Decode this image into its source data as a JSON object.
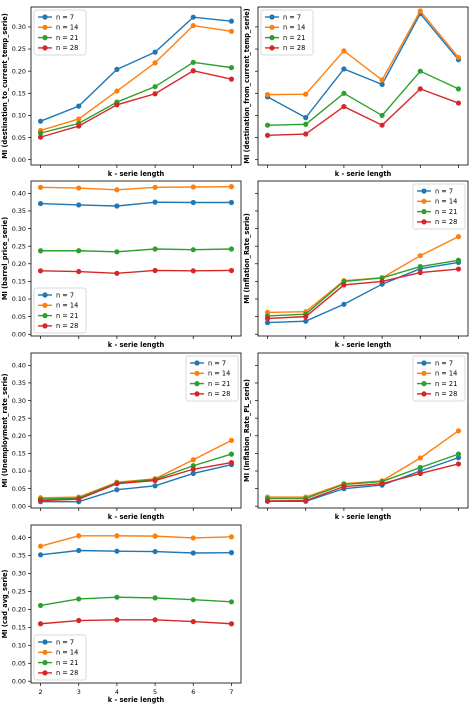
{
  "colors": {
    "n = 7": "#1f77b4",
    "n = 14": "#ff7f0e",
    "n = 21": "#2ca02c",
    "n = 28": "#d62728",
    "frame": "#000000",
    "legend_border": "#cccccc"
  },
  "chart_data": [
    {
      "type": "line",
      "xlabel": "k - serie length",
      "ylabel": "MI (destination_to_current_temp_serie)",
      "x": [
        2,
        3,
        4,
        5,
        6,
        7
      ],
      "xlim": [
        1.75,
        7.25
      ],
      "ylim": [
        -0.012,
        0.345
      ],
      "yticks": [
        0.0,
        0.05,
        0.1,
        0.15,
        0.2,
        0.25,
        0.3
      ],
      "ytick_labels": [
        "0.00",
        "0.05",
        "0.10",
        "0.15",
        "0.20",
        "0.25",
        "0.30"
      ],
      "show_xticks": false,
      "legend": "upper-left",
      "series": [
        {
          "name": "n = 7",
          "values": [
            0.087,
            0.121,
            0.204,
            0.243,
            0.322,
            0.313
          ]
        },
        {
          "name": "n = 14",
          "values": [
            0.066,
            0.092,
            0.155,
            0.219,
            0.303,
            0.29
          ]
        },
        {
          "name": "n = 21",
          "values": [
            0.06,
            0.082,
            0.13,
            0.165,
            0.22,
            0.208
          ]
        },
        {
          "name": "n = 28",
          "values": [
            0.051,
            0.076,
            0.124,
            0.149,
            0.201,
            0.182
          ]
        }
      ]
    },
    {
      "type": "line",
      "xlabel": "k - serie length",
      "ylabel": "MI (destination_from_current_temp_serie)",
      "x": [
        2,
        3,
        4,
        5,
        6,
        7
      ],
      "xlim": [
        1.75,
        7.25
      ],
      "ylim": [
        -0.012,
        0.345
      ],
      "yticks": [],
      "ytick_labels": [],
      "show_xticks": false,
      "legend": "upper-left",
      "series": [
        {
          "name": "n = 7",
          "values": [
            0.142,
            0.095,
            0.205,
            0.17,
            0.33,
            0.226
          ]
        },
        {
          "name": "n = 14",
          "values": [
            0.147,
            0.148,
            0.246,
            0.18,
            0.336,
            0.231
          ]
        },
        {
          "name": "n = 21",
          "values": [
            0.078,
            0.08,
            0.15,
            0.1,
            0.2,
            0.16
          ]
        },
        {
          "name": "n = 28",
          "values": [
            0.055,
            0.058,
            0.12,
            0.078,
            0.16,
            0.128
          ]
        }
      ]
    },
    {
      "type": "line",
      "xlabel": "k - serie length",
      "ylabel": "MI (barrel_price_serie)",
      "x": [
        2,
        3,
        4,
        5,
        6,
        7
      ],
      "xlim": [
        1.75,
        7.25
      ],
      "ylim": [
        -0.005,
        0.435
      ],
      "yticks": [
        0.0,
        0.05,
        0.1,
        0.15,
        0.2,
        0.25,
        0.3,
        0.35,
        0.4
      ],
      "ytick_labels": [
        "0.00",
        "0.05",
        "0.10",
        "0.15",
        "0.20",
        "0.25",
        "0.30",
        "0.35",
        "0.40"
      ],
      "show_xticks": false,
      "legend": "lower-left",
      "series": [
        {
          "name": "n = 7",
          "values": [
            0.371,
            0.367,
            0.364,
            0.375,
            0.374,
            0.374
          ]
        },
        {
          "name": "n = 14",
          "values": [
            0.417,
            0.415,
            0.41,
            0.417,
            0.418,
            0.419
          ]
        },
        {
          "name": "n = 21",
          "values": [
            0.237,
            0.237,
            0.234,
            0.242,
            0.24,
            0.242
          ]
        },
        {
          "name": "n = 28",
          "values": [
            0.18,
            0.178,
            0.173,
            0.181,
            0.18,
            0.181
          ]
        }
      ]
    },
    {
      "type": "line",
      "xlabel": "k - serie length",
      "ylabel": "MI (Inflation_Rate_serie)",
      "x": [
        2,
        3,
        4,
        5,
        6,
        7
      ],
      "xlim": [
        1.75,
        7.25
      ],
      "ylim": [
        -0.005,
        0.435
      ],
      "yticks": [],
      "ytick_labels": [],
      "show_xticks": false,
      "legend": "upper-right",
      "series": [
        {
          "name": "n = 7",
          "values": [
            0.033,
            0.037,
            0.085,
            0.142,
            0.186,
            0.204
          ]
        },
        {
          "name": "n = 14",
          "values": [
            0.062,
            0.064,
            0.152,
            0.16,
            0.223,
            0.277
          ]
        },
        {
          "name": "n = 21",
          "values": [
            0.052,
            0.057,
            0.15,
            0.16,
            0.192,
            0.21
          ]
        },
        {
          "name": "n = 28",
          "values": [
            0.045,
            0.05,
            0.14,
            0.15,
            0.175,
            0.185
          ]
        }
      ]
    },
    {
      "type": "line",
      "xlabel": "k - serie length",
      "ylabel": "MI (Unemployment_rate_serie)",
      "x": [
        2,
        3,
        4,
        5,
        6,
        7
      ],
      "xlim": [
        1.75,
        7.25
      ],
      "ylim": [
        -0.005,
        0.435
      ],
      "yticks": [
        0.0,
        0.05,
        0.1,
        0.15,
        0.2,
        0.25,
        0.3,
        0.35,
        0.4
      ],
      "ytick_labels": [
        "0.00",
        "0.05",
        "0.10",
        "0.15",
        "0.20",
        "0.25",
        "0.30",
        "0.35",
        "0.40"
      ],
      "show_xticks": false,
      "legend": "upper-right",
      "series": [
        {
          "name": "n = 7",
          "values": [
            0.013,
            0.013,
            0.047,
            0.058,
            0.093,
            0.118
          ]
        },
        {
          "name": "n = 14",
          "values": [
            0.024,
            0.026,
            0.068,
            0.078,
            0.132,
            0.187
          ]
        },
        {
          "name": "n = 21",
          "values": [
            0.02,
            0.023,
            0.066,
            0.076,
            0.115,
            0.148
          ]
        },
        {
          "name": "n = 28",
          "values": [
            0.016,
            0.02,
            0.064,
            0.073,
            0.105,
            0.124
          ]
        }
      ]
    },
    {
      "type": "line",
      "xlabel": "k - serie length",
      "ylabel": "MI (Inflation_Rate_PL_serie)",
      "x": [
        2,
        3,
        4,
        5,
        6,
        7
      ],
      "xlim": [
        1.75,
        7.25
      ],
      "ylim": [
        -0.005,
        0.435
      ],
      "yticks": [],
      "ytick_labels": [],
      "show_xticks": false,
      "legend": "upper-right",
      "series": [
        {
          "name": "n = 7",
          "values": [
            0.014,
            0.014,
            0.05,
            0.06,
            0.1,
            0.138
          ]
        },
        {
          "name": "n = 14",
          "values": [
            0.026,
            0.026,
            0.064,
            0.072,
            0.137,
            0.214
          ]
        },
        {
          "name": "n = 21",
          "values": [
            0.022,
            0.022,
            0.062,
            0.07,
            0.11,
            0.148
          ]
        },
        {
          "name": "n = 28",
          "values": [
            0.015,
            0.016,
            0.056,
            0.064,
            0.093,
            0.12
          ]
        }
      ]
    },
    {
      "type": "line",
      "xlabel": "k - serie length",
      "ylabel": "MI (cad_avg_serie)",
      "x": [
        2,
        3,
        4,
        5,
        6,
        7
      ],
      "xlim": [
        1.75,
        7.25
      ],
      "ylim": [
        -0.005,
        0.435
      ],
      "yticks": [
        0.0,
        0.05,
        0.1,
        0.15,
        0.2,
        0.25,
        0.3,
        0.35,
        0.4
      ],
      "ytick_labels": [
        "0.00",
        "0.05",
        "0.10",
        "0.15",
        "0.20",
        "0.25",
        "0.30",
        "0.35",
        "0.40"
      ],
      "show_xticks": true,
      "xtick_labels": [
        "2",
        "3",
        "4",
        "5",
        "6",
        "7"
      ],
      "legend": "lower-left",
      "series": [
        {
          "name": "n = 7",
          "values": [
            0.352,
            0.364,
            0.362,
            0.361,
            0.357,
            0.358
          ]
        },
        {
          "name": "n = 14",
          "values": [
            0.376,
            0.405,
            0.405,
            0.404,
            0.399,
            0.402
          ]
        },
        {
          "name": "n = 21",
          "values": [
            0.211,
            0.229,
            0.234,
            0.232,
            0.227,
            0.221
          ]
        },
        {
          "name": "n = 28",
          "values": [
            0.16,
            0.169,
            0.171,
            0.171,
            0.166,
            0.16
          ]
        }
      ]
    }
  ]
}
